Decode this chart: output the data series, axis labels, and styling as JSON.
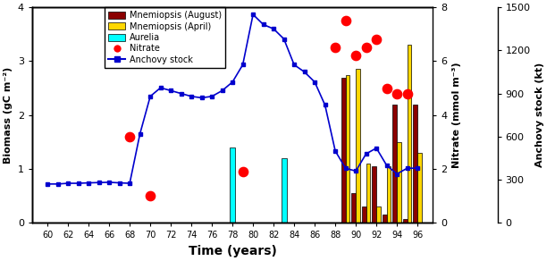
{
  "anchovy_years": [
    60,
    61,
    62,
    63,
    64,
    65,
    66,
    67,
    68,
    69,
    70,
    71,
    72,
    73,
    74,
    75,
    76,
    77,
    78,
    79,
    80,
    81,
    82,
    83,
    84,
    85,
    86,
    87,
    88,
    89,
    90,
    91,
    92,
    93,
    94,
    95,
    96
  ],
  "anchovy_stock": [
    270,
    270,
    275,
    275,
    278,
    280,
    282,
    278,
    275,
    620,
    880,
    940,
    920,
    900,
    880,
    870,
    880,
    920,
    980,
    1100,
    1450,
    1380,
    1350,
    1280,
    1100,
    1050,
    980,
    820,
    500,
    380,
    360,
    480,
    520,
    400,
    340,
    380,
    380
  ],
  "nitrate_years": [
    68,
    70,
    79,
    88,
    89,
    90,
    91,
    92,
    93,
    94,
    95
  ],
  "nitrate_values": [
    3.2,
    1.0,
    1.9,
    6.5,
    7.5,
    6.2,
    6.5,
    6.8,
    5.0,
    4.8,
    4.8
  ],
  "aurelia_years": [
    78,
    83
  ],
  "aurelia_values": [
    1.4,
    1.2
  ],
  "mnemiopsis_aug_years": [
    88,
    89,
    90,
    91,
    92,
    93,
    94,
    95,
    96
  ],
  "mnemiopsis_aug_values": [
    0.0,
    2.7,
    0.55,
    0.3,
    1.05,
    0.15,
    2.2,
    0.07,
    2.2
  ],
  "mnemiopsis_apr_years": [
    88,
    89,
    90,
    91,
    92,
    93,
    94,
    95,
    96
  ],
  "mnemiopsis_apr_values": [
    0.0,
    2.75,
    2.85,
    1.1,
    0.3,
    1.05,
    1.5,
    3.3,
    1.3
  ],
  "biomass_ylim": [
    0,
    4
  ],
  "nitrate_ylim": [
    0,
    8
  ],
  "anchovy_ylim": [
    0,
    1500
  ],
  "color_mnemiopsis_aug": "#8B0000",
  "color_mnemiopsis_apr": "#FFD700",
  "color_aurelia": "#00FFFF",
  "color_nitrate": "#FF0000",
  "color_anchovy": "#0000CD",
  "xlabel": "Time (years)",
  "ylabel_left": "Biomass (gC m⁻²)",
  "ylabel_right1": "Nitrate (mmol m⁻³)",
  "ylabel_right2": "Anchovy stock (kt)",
  "xticks": [
    60,
    62,
    64,
    66,
    68,
    70,
    72,
    74,
    76,
    78,
    80,
    82,
    84,
    86,
    88,
    90,
    92,
    94,
    96
  ],
  "legend_labels": [
    "Mnemiopsis (August)",
    "Mnemiopsis (April)",
    "Aurelia",
    "Nitrate",
    "Anchovy stock"
  ],
  "background_color": "#FFFFFF"
}
